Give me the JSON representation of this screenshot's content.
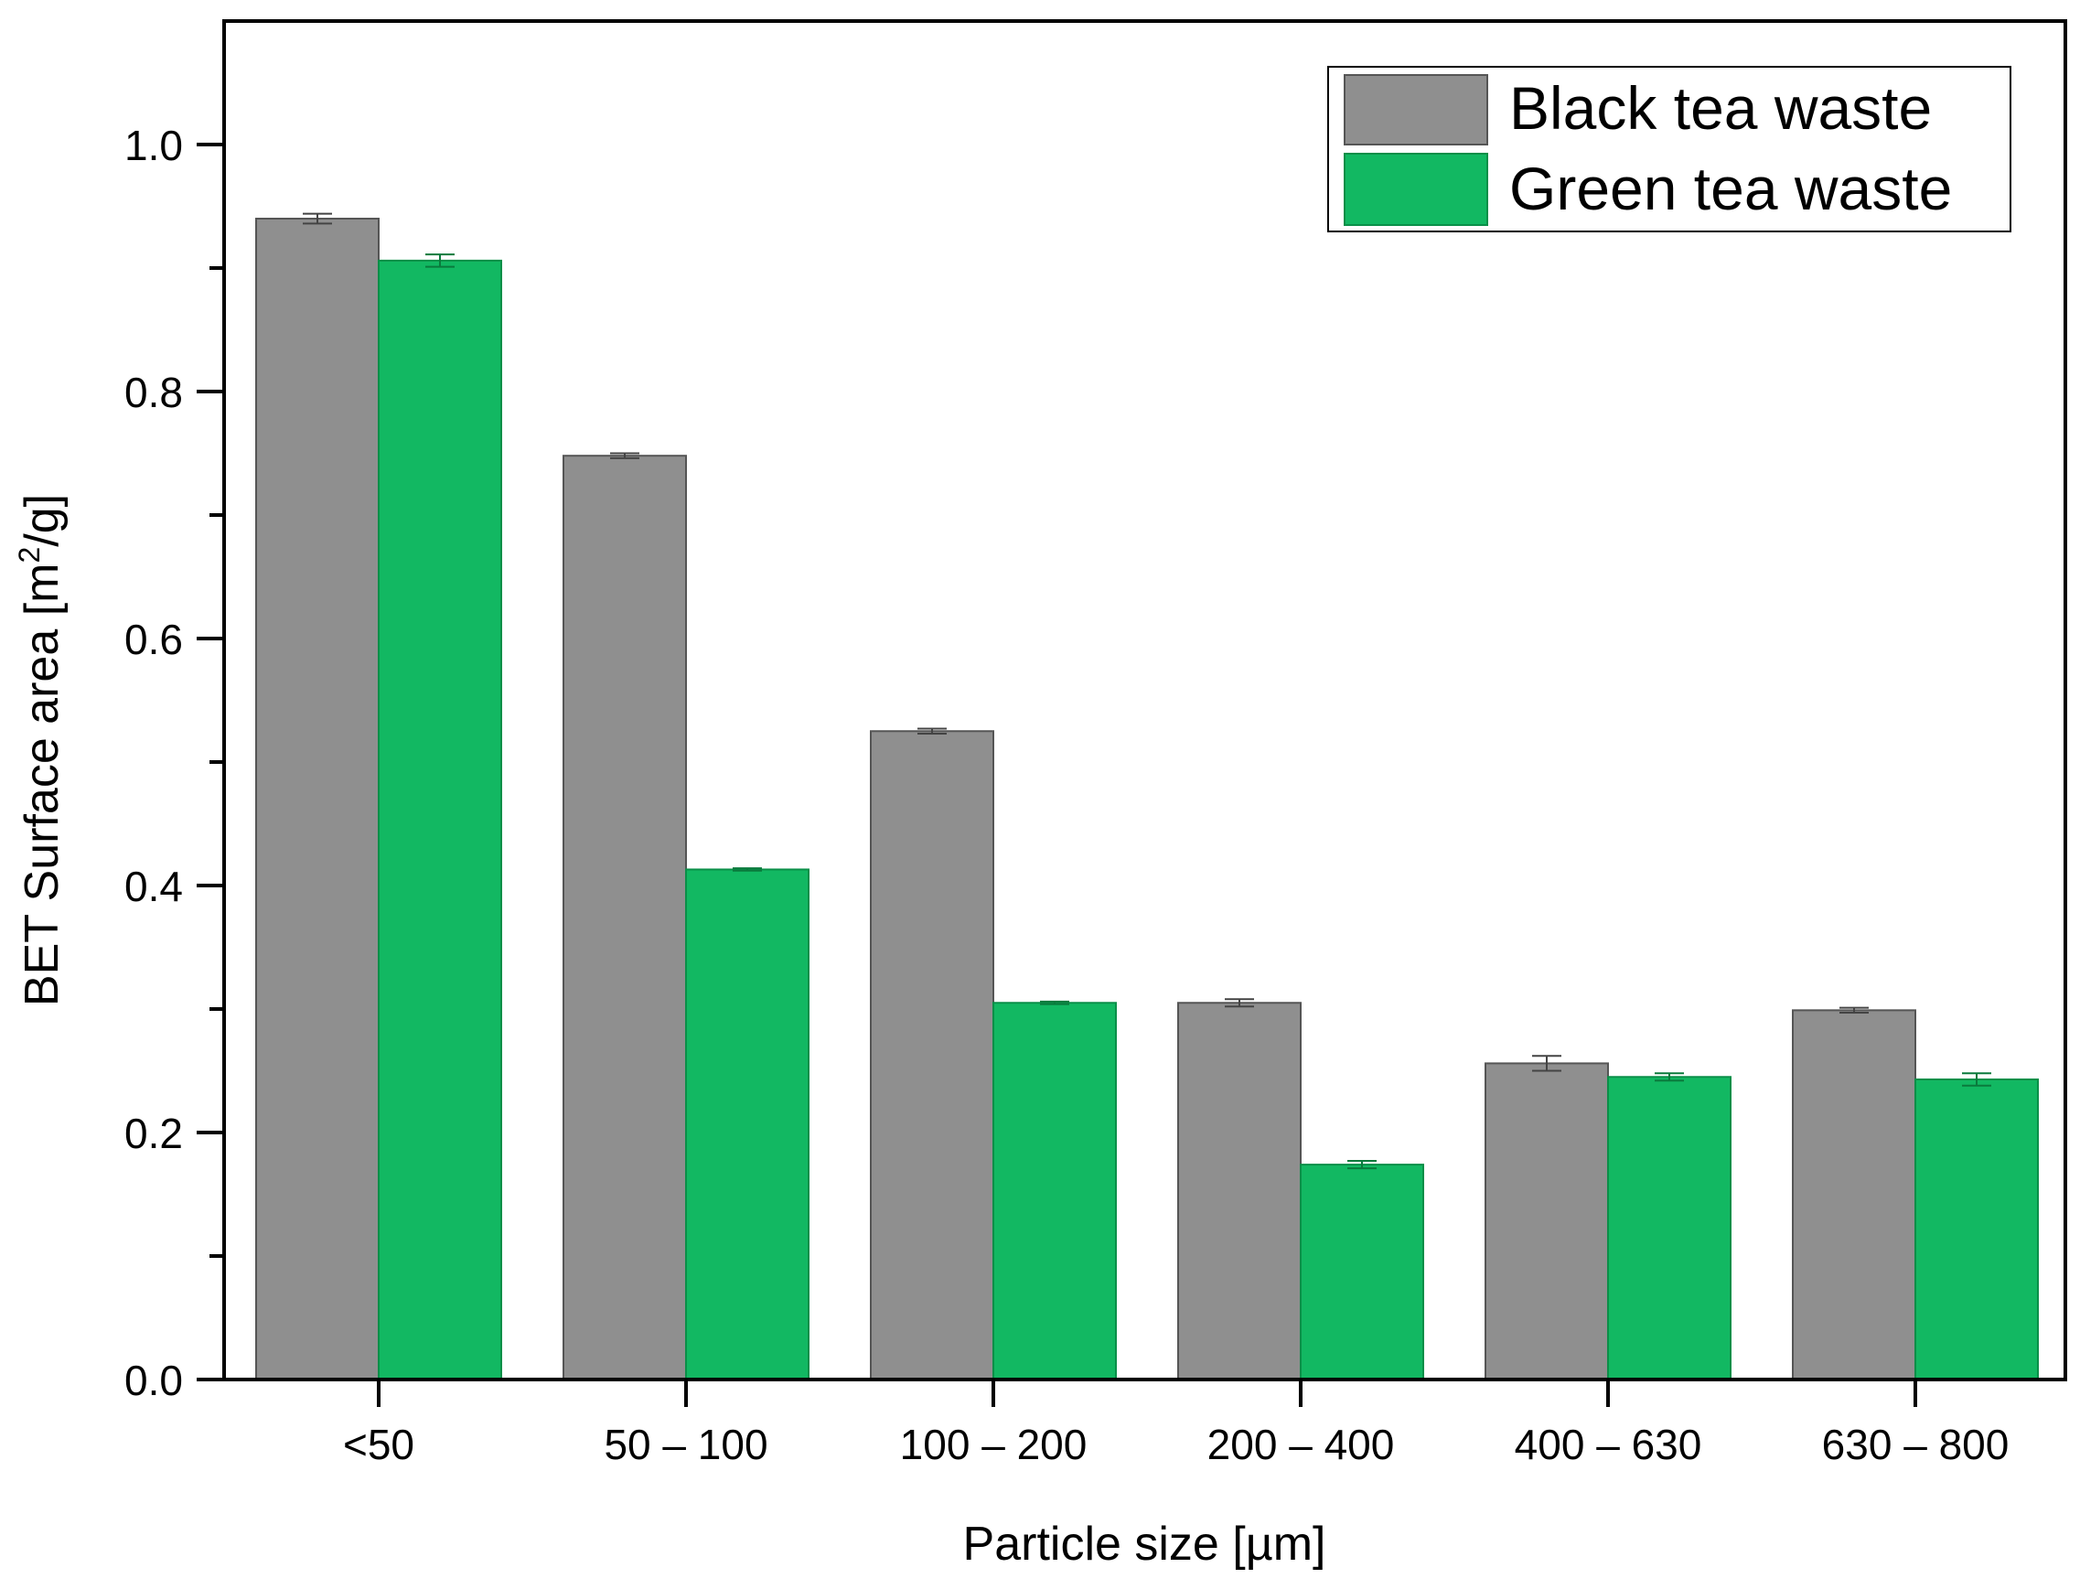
{
  "chart_data": {
    "type": "bar",
    "title": "",
    "xlabel": "Particle size [µm]",
    "ylabel_main": "BET Surface area [m",
    "ylabel_sup": "2",
    "ylabel_tail": "/g]",
    "categories": [
      "<50",
      "50 – 100",
      "100 – 200",
      "200 – 400",
      "400 – 630",
      "630 – 800"
    ],
    "ylim": [
      0,
      1.1
    ],
    "yticks": [
      0.0,
      0.2,
      0.4,
      0.6,
      0.8,
      1.0
    ],
    "ytick_labels": [
      "0.0",
      "0.2",
      "0.4",
      "0.6",
      "0.8",
      "1.0"
    ],
    "series": [
      {
        "name": "Black tea waste",
        "color": "#8f8f8f",
        "values": [
          0.94,
          0.748,
          0.525,
          0.305,
          0.256,
          0.299
        ],
        "errors": [
          0.004,
          0.002,
          0.002,
          0.003,
          0.006,
          0.002
        ]
      },
      {
        "name": "Green tea waste",
        "color": "#12b862",
        "values": [
          0.906,
          0.413,
          0.305,
          0.174,
          0.245,
          0.243
        ],
        "errors": [
          0.005,
          0.001,
          0.001,
          0.003,
          0.003,
          0.005
        ]
      }
    ],
    "legend_position": "top-right",
    "grid": false
  }
}
